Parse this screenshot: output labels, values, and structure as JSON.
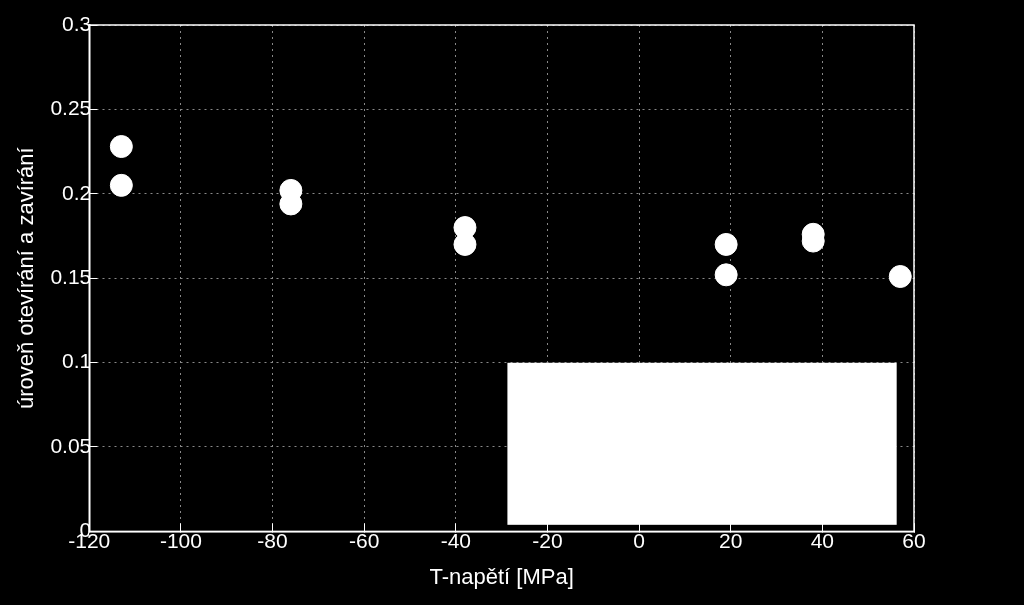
{
  "chart_data": {
    "type": "scatter",
    "x_label": "T-napětí [MPa]",
    "y_label": "úroveň otevírání a zavírání",
    "x": [
      -113,
      -113,
      -76,
      -76,
      -38,
      -38,
      19,
      19,
      38,
      38,
      57
    ],
    "values": [
      0.228,
      0.205,
      0.202,
      0.194,
      0.18,
      0.17,
      0.17,
      0.152,
      0.176,
      0.172,
      0.151
    ],
    "color": "#ffffff",
    "marker": "circle",
    "xlim": [
      -120,
      60
    ],
    "xticks": [
      -120,
      -100,
      -80,
      -60,
      -40,
      -20,
      0,
      20,
      40,
      60
    ],
    "ylim": [
      0,
      0.3
    ],
    "yticks": [
      0,
      0.05,
      0.1,
      0.15,
      0.2,
      0.25,
      0.3
    ],
    "grid": true
  }
}
